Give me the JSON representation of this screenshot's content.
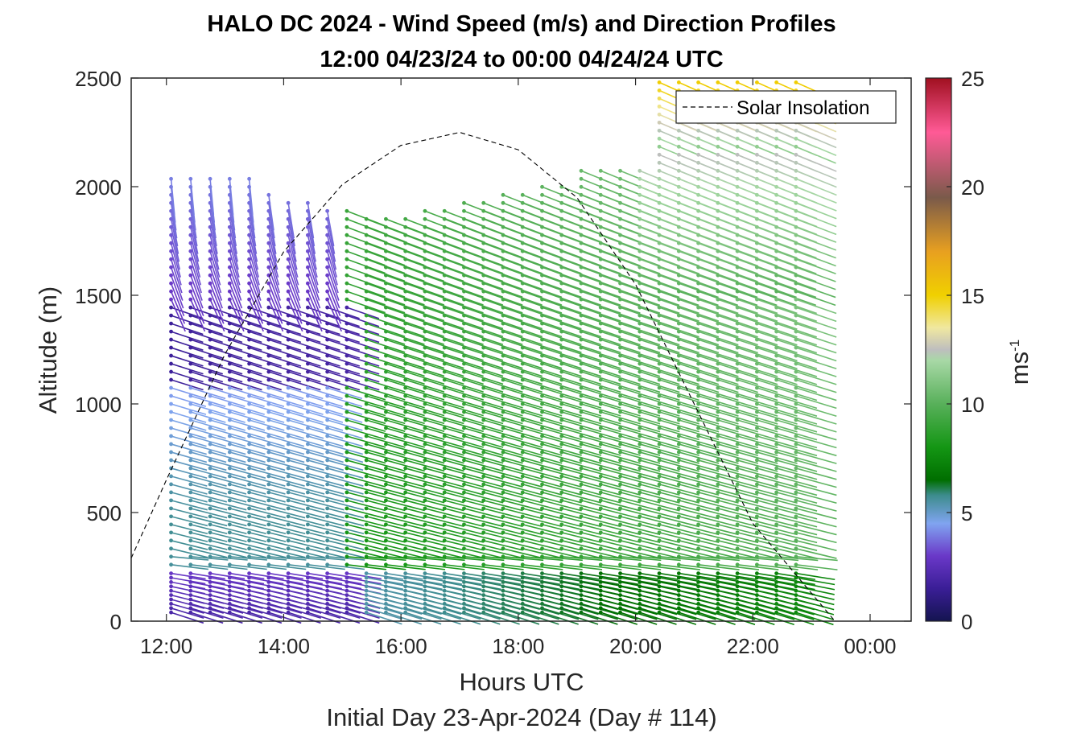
{
  "chart_data": {
    "type": "wind-barb-profile",
    "title": "HALO DC 2024 - Wind Speed (m/s) and Direction Profiles",
    "subtitle": "12:00 04/23/24 to 00:00 04/24/24  UTC",
    "xlabel": "Hours UTC",
    "x_sublabel": "Initial Day 23-Apr-2024 (Day # 114)",
    "ylabel": "Altitude (m)",
    "xlim": [
      11.4,
      24.7
    ],
    "ylim": [
      0,
      2500
    ],
    "x_ticks": [
      12,
      14,
      16,
      18,
      20,
      22,
      24
    ],
    "x_tick_labels": [
      "12:00",
      "14:00",
      "16:00",
      "18:00",
      "20:00",
      "22:00",
      "00:00"
    ],
    "y_ticks": [
      0,
      500,
      1000,
      1500,
      2000,
      2500
    ],
    "y_tick_labels": [
      "0",
      "500",
      "1000",
      "1500",
      "2000",
      "2500"
    ],
    "colorbar": {
      "label_base": "ms",
      "label_exp": "-1",
      "range": [
        0,
        25
      ],
      "ticks": [
        0,
        5,
        10,
        15,
        20,
        25
      ],
      "tick_labels": [
        "0",
        "5",
        "10",
        "15",
        "20",
        "25"
      ],
      "colormap": [
        {
          "v": 0,
          "c": "#141450"
        },
        {
          "v": 1.5,
          "c": "#3a1e96"
        },
        {
          "v": 3,
          "c": "#6a38c8"
        },
        {
          "v": 4.5,
          "c": "#80a4f0"
        },
        {
          "v": 5.8,
          "c": "#3c8c8c"
        },
        {
          "v": 6.5,
          "c": "#006e00"
        },
        {
          "v": 8,
          "c": "#149614"
        },
        {
          "v": 10,
          "c": "#58b05a"
        },
        {
          "v": 12,
          "c": "#a8d8a6"
        },
        {
          "v": 12.5,
          "c": "#bebebe"
        },
        {
          "v": 13.5,
          "c": "#f0e8a0"
        },
        {
          "v": 15,
          "c": "#f0d000"
        },
        {
          "v": 17,
          "c": "#e8a020"
        },
        {
          "v": 19.5,
          "c": "#7a5a4a"
        },
        {
          "v": 22.5,
          "c": "#ff5a96"
        },
        {
          "v": 25,
          "c": "#a01020"
        }
      ]
    },
    "legend": {
      "label": "Solar Insolation",
      "position": "top-right",
      "style": "dashed"
    },
    "solar_insolation": [
      {
        "x": 11.4,
        "y": 290
      },
      {
        "x": 12.0,
        "y": 650
      },
      {
        "x": 13.0,
        "y": 1230
      },
      {
        "x": 14.0,
        "y": 1700
      },
      {
        "x": 15.0,
        "y": 2010
      },
      {
        "x": 16.0,
        "y": 2190
      },
      {
        "x": 17.0,
        "y": 2250
      },
      {
        "x": 18.0,
        "y": 2170
      },
      {
        "x": 19.0,
        "y": 1950
      },
      {
        "x": 20.0,
        "y": 1550
      },
      {
        "x": 21.0,
        "y": 1000
      },
      {
        "x": 22.0,
        "y": 450
      },
      {
        "x": 23.4,
        "y": 0
      },
      {
        "x": 24.6,
        "y": 0
      }
    ],
    "profile_times": {
      "start": 12.08,
      "end": 23.0,
      "step": 0.333
    },
    "levels": {
      "low_start": 40,
      "low_step": 20,
      "low_count": 10,
      "high_start": 260,
      "high_step": 37
    }
  }
}
